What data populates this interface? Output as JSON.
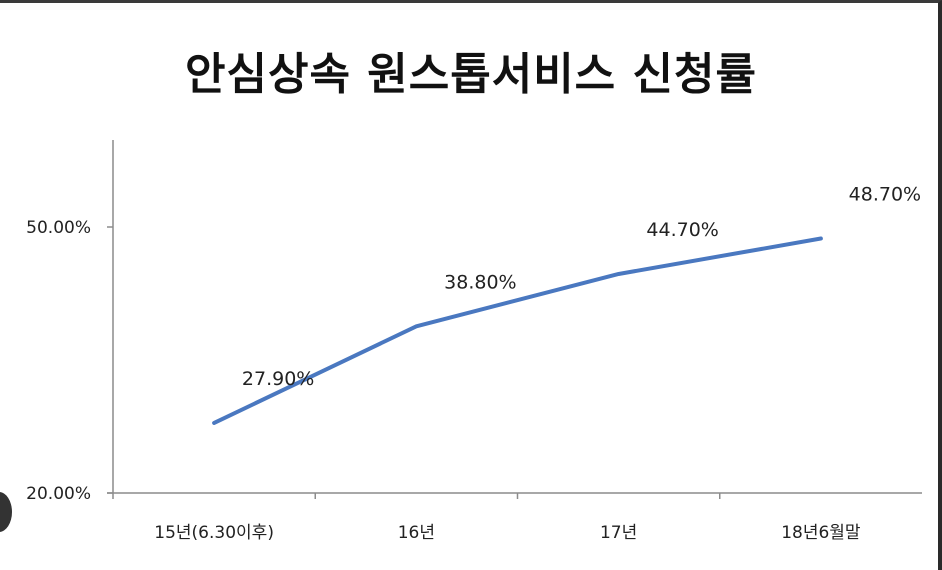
{
  "chart_data": {
    "type": "line",
    "title": "안심상속 원스톱서비스 신청률",
    "categories": [
      "15년(6.30이후)",
      "16년",
      "17년",
      "18년6월말"
    ],
    "series": [
      {
        "values": [
          27.9,
          38.8,
          44.7,
          48.7
        ],
        "color": "#4a78c0"
      }
    ],
    "data_labels": [
      "27.90%",
      "38.80%",
      "44.70%",
      "48.70%"
    ],
    "y_ticks": [
      {
        "value": 20,
        "label": "20.00%"
      },
      {
        "value": 50,
        "label": "50.00%"
      }
    ],
    "ylim": [
      20,
      50
    ],
    "grid": false,
    "legend": "none"
  }
}
